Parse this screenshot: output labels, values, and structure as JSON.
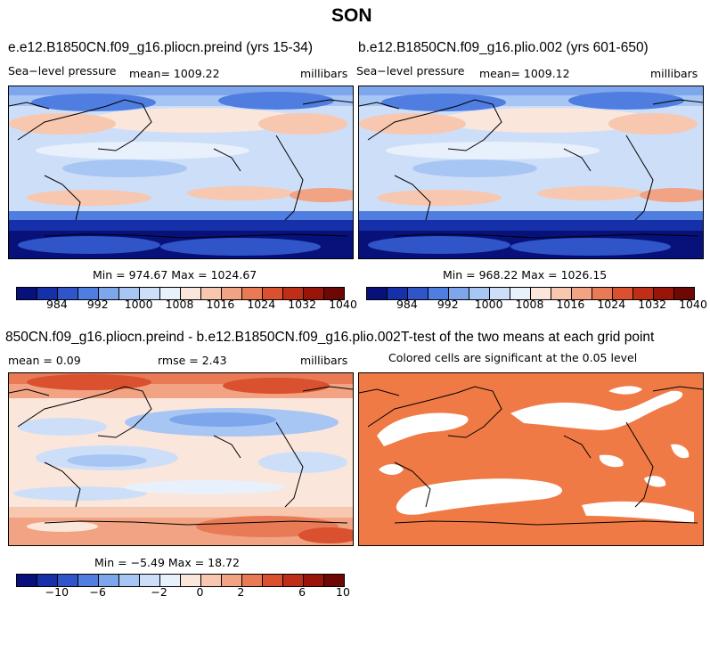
{
  "figure": {
    "title": "SON"
  },
  "panels": {
    "p1": {
      "title": "e.e12.B1850CN.f09_g16.pliocn.preind (yrs 15-34)",
      "left": "Sea−level pressure",
      "mean": "mean= 1009.22",
      "units": "millibars",
      "minmax": "Min = 974.67  Max = 1024.67"
    },
    "p2": {
      "title": "b.e12.B1850CN.f09_g16.plio.002 (yrs 601-650)",
      "left": "Sea−level pressure",
      "mean": "mean= 1009.12",
      "units": "millibars",
      "minmax": "Min = 968.22  Max = 1026.15"
    },
    "p3": {
      "title": "850CN.f09_g16.pliocn.preind - b.e12.B1850CN.f09_g16.plio.002",
      "mean": "mean =     0.09",
      "rmse": "rmse =     2.43",
      "units": "millibars",
      "minmax": "Min =  −5.49  Max =  18.72"
    },
    "p4": {
      "title": "T-test of the two means at each grid point",
      "subtitle": "Colored cells are significant at the 0.05 level"
    }
  },
  "colorbars": {
    "absolute": {
      "ticks": [
        "984",
        "992",
        "1000",
        "1008",
        "1016",
        "1024",
        "1032",
        "1040"
      ],
      "colors": [
        "#08117a",
        "#1530a8",
        "#2f55c8",
        "#4f7de0",
        "#7ea6ec",
        "#a8c6f3",
        "#cddff8",
        "#e8f0fb",
        "#fbe6dc",
        "#f7c7b0",
        "#f1a383",
        "#e87a55",
        "#d9512e",
        "#bf2e17",
        "#9a1509",
        "#6e0804"
      ]
    },
    "difference": {
      "ticks": [
        "−10",
        "−6",
        "−2",
        "0",
        "2",
        "6",
        "10"
      ],
      "colors": [
        "#08117a",
        "#1530a8",
        "#2f55c8",
        "#4f7de0",
        "#7ea6ec",
        "#a8c6f3",
        "#cddff8",
        "#e8f0fb",
        "#fbe6dc",
        "#f7c7b0",
        "#f1a383",
        "#e87a55",
        "#d9512e",
        "#bf2e17",
        "#9a1509",
        "#6e0804"
      ]
    }
  },
  "colors": {
    "significant": "#f07a45",
    "coast": "#000000"
  }
}
